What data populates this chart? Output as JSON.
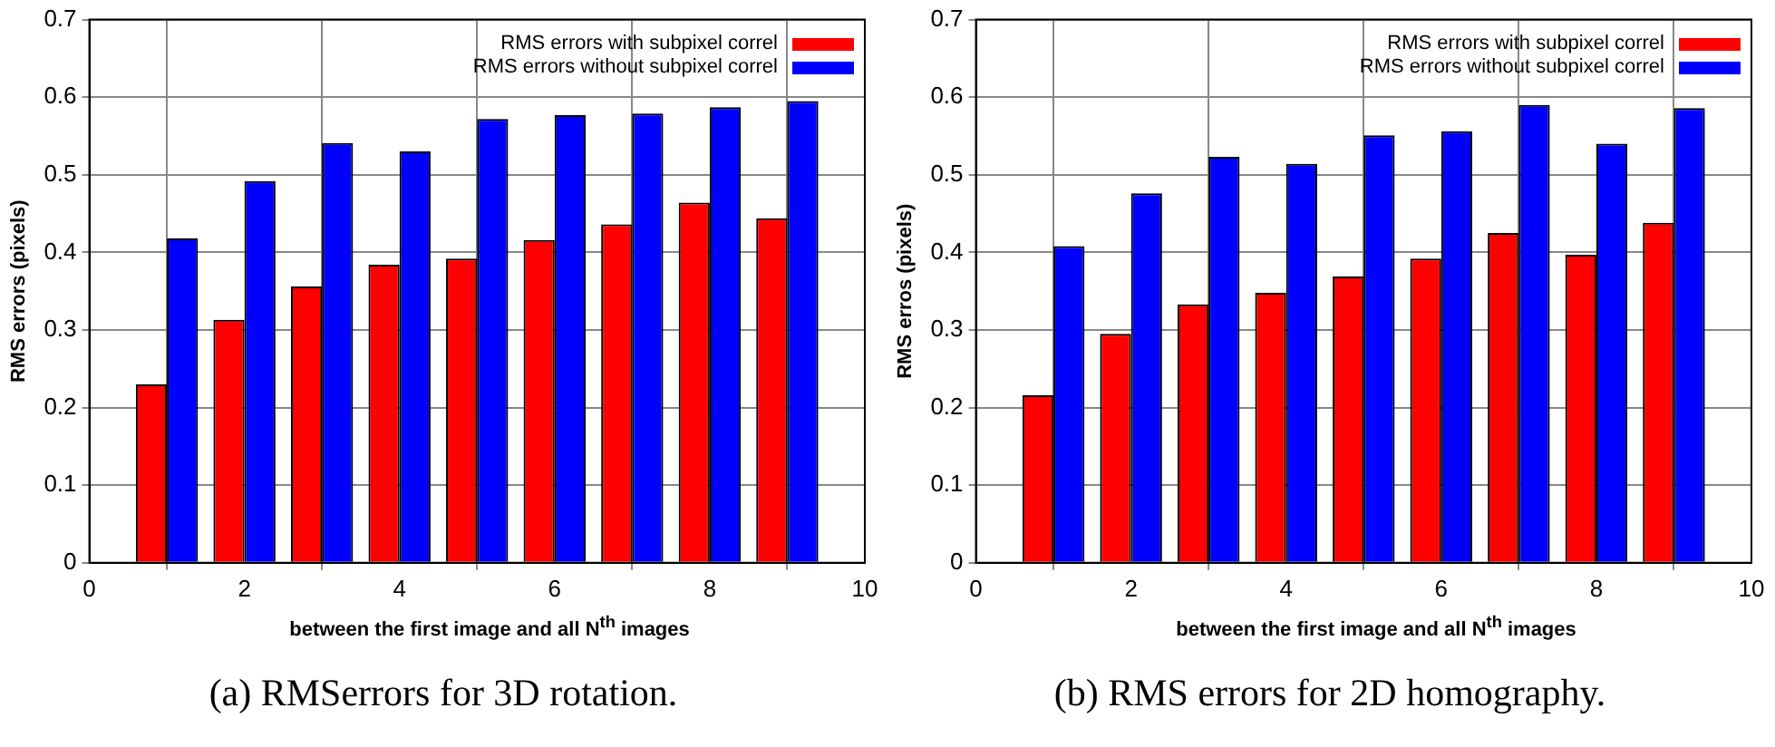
{
  "chart_data": [
    {
      "type": "bar",
      "title": "(a) RMSerrors for 3D rotation.",
      "xlabel": "between the first image and all N$^{th}$ images",
      "ylabel": "RMS errors (pixels)",
      "x": [
        1,
        2,
        3,
        4,
        5,
        6,
        7,
        8,
        9
      ],
      "xlim": [
        0,
        10
      ],
      "xticks": [
        0,
        2,
        4,
        6,
        8,
        10
      ],
      "ylim": [
        0,
        0.7
      ],
      "yticks": [
        0,
        0.1,
        0.2,
        0.3,
        0.4,
        0.5,
        0.6,
        0.7
      ],
      "grid": true,
      "legend": "top right",
      "series": [
        {
          "name": "RMS errors with subpixel correl",
          "color": "#ff0000",
          "values": [
            0.23,
            0.313,
            0.356,
            0.384,
            0.392,
            0.416,
            0.436,
            0.464,
            0.444
          ]
        },
        {
          "name": "RMS errors without subpixel correl",
          "color": "#0000ff",
          "values": [
            0.418,
            0.492,
            0.541,
            0.53,
            0.572,
            0.577,
            0.579,
            0.587,
            0.595
          ]
        }
      ]
    },
    {
      "type": "bar",
      "title": "(b) RMS errors for 2D homography.",
      "xlabel": "between the first image and all N$^{th}$ images",
      "ylabel": "RMS erros (pixels)",
      "x": [
        1,
        2,
        3,
        4,
        5,
        6,
        7,
        8,
        9
      ],
      "xlim": [
        0,
        10
      ],
      "xticks": [
        0,
        2,
        4,
        6,
        8,
        10
      ],
      "ylim": [
        0,
        0.7
      ],
      "yticks": [
        0,
        0.1,
        0.2,
        0.3,
        0.4,
        0.5,
        0.6,
        0.7
      ],
      "grid": true,
      "legend": "top right",
      "series": [
        {
          "name": "RMS errors with subpixel correl",
          "color": "#ff0000",
          "values": [
            0.216,
            0.295,
            0.333,
            0.348,
            0.369,
            0.392,
            0.425,
            0.397,
            0.438
          ]
        },
        {
          "name": "RMS errors without subpixel correl",
          "color": "#0000ff",
          "values": [
            0.408,
            0.476,
            0.523,
            0.514,
            0.551,
            0.556,
            0.59,
            0.54,
            0.586
          ]
        }
      ]
    }
  ]
}
